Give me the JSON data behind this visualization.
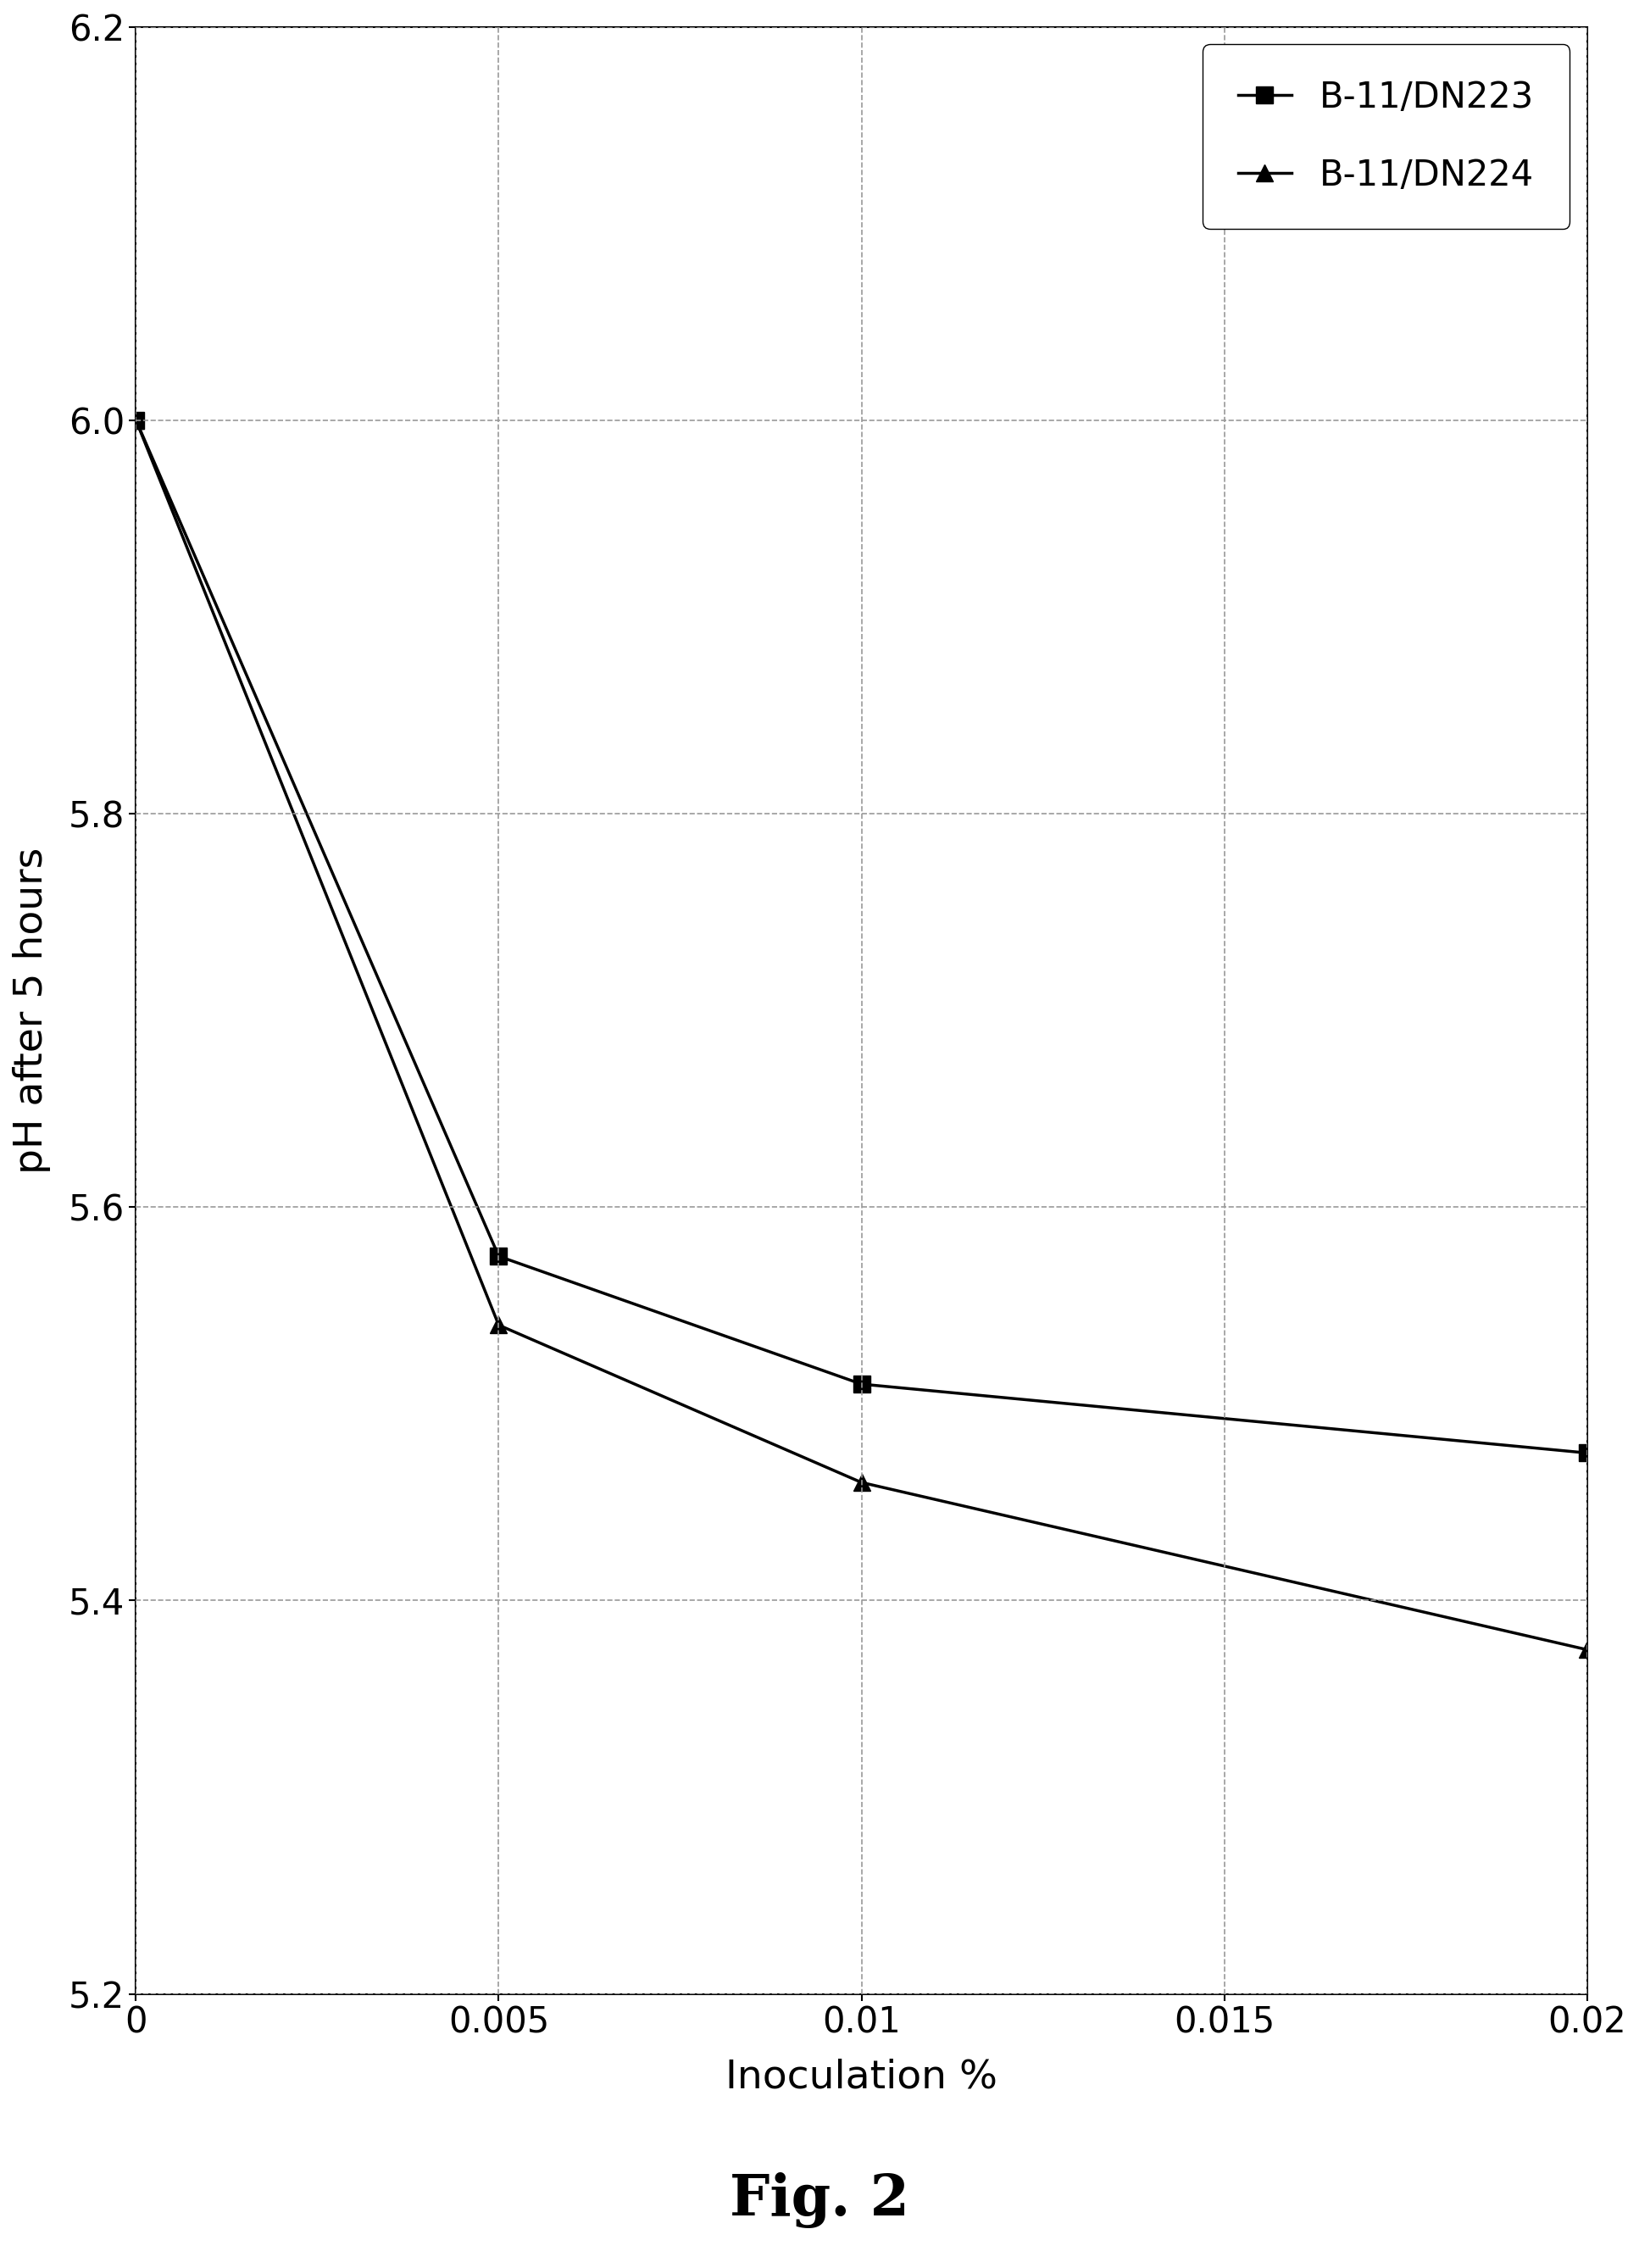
{
  "title": "Fig. 2",
  "xlabel": "Inoculation %",
  "ylabel": "pH after 5 hours",
  "xlim": [
    0,
    0.02
  ],
  "ylim": [
    5.2,
    6.2
  ],
  "xticks": [
    0,
    0.005,
    0.01,
    0.015,
    0.02
  ],
  "yticks": [
    5.2,
    5.4,
    5.6,
    5.8,
    6.0,
    6.2
  ],
  "series": [
    {
      "label": "B-11/DN223",
      "x": [
        0,
        0.005,
        0.01,
        0.02
      ],
      "y": [
        6.0,
        5.575,
        5.51,
        5.475
      ],
      "marker": "s",
      "color": "#000000",
      "markersize": 14
    },
    {
      "label": "B-11/DN224",
      "x": [
        0,
        0.005,
        0.01,
        0.02
      ],
      "y": [
        6.0,
        5.54,
        5.46,
        5.375
      ],
      "marker": "^",
      "color": "#000000",
      "markersize": 14
    }
  ],
  "grid_color": "#999999",
  "background_color": "#ffffff",
  "title_fontsize": 48,
  "title_fontweight": "bold",
  "axis_label_fontsize": 34,
  "tick_fontsize": 30,
  "legend_fontsize": 30,
  "linewidth": 2.5
}
